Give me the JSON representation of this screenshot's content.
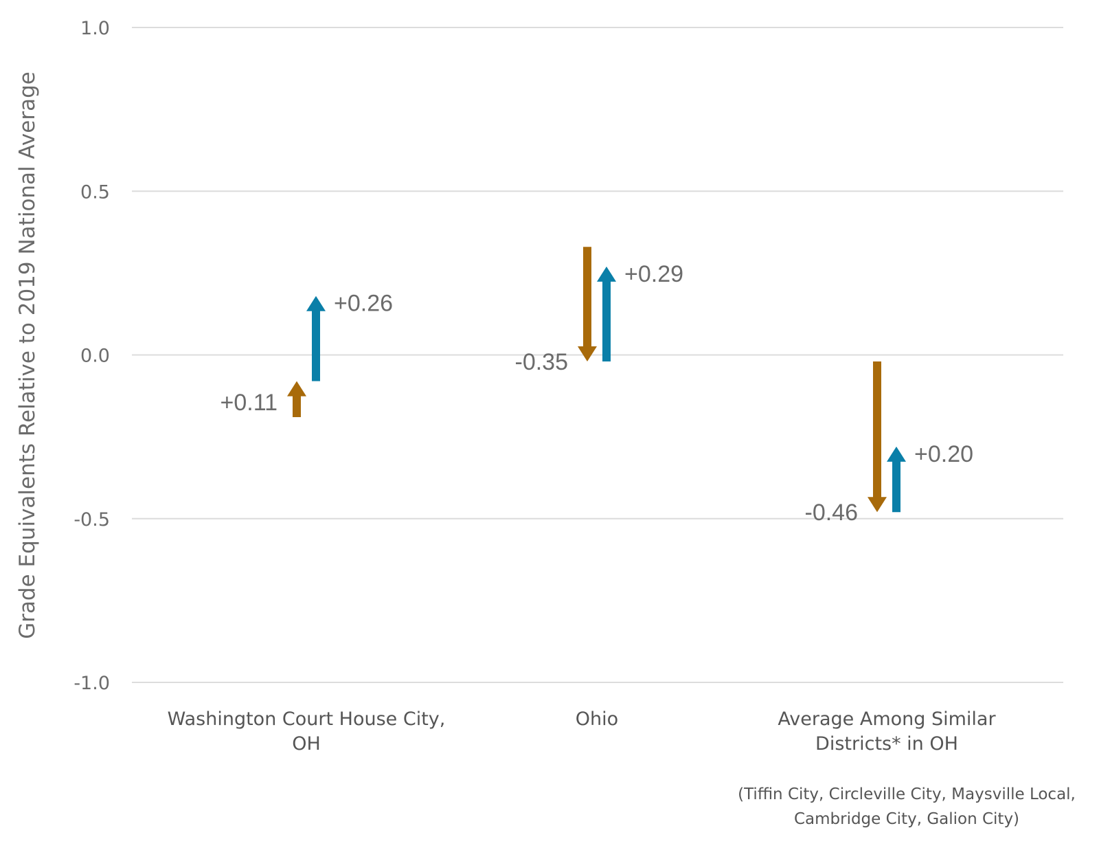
{
  "chart_data": {
    "type": "arrow",
    "ylabel": "Grade Equivalents Relative to 2019 National Average",
    "xlabel": "",
    "ylim": [
      -1.0,
      1.0
    ],
    "yticks": [
      "1.0",
      "0.5",
      "0.0",
      "-0.5",
      "-1.0"
    ],
    "ytick_values": [
      1.0,
      0.5,
      0.0,
      -0.5,
      -1.0
    ],
    "grid": true,
    "categories": [
      [
        "Washington Court House City,",
        "OH"
      ],
      [
        "Ohio"
      ],
      [
        "Average Among Similar",
        "Districts* in OH"
      ]
    ],
    "series": [
      {
        "color": "#a86a0a",
        "arrows": [
          {
            "from": -0.19,
            "to": -0.08,
            "label": "+0.11"
          },
          {
            "from": 0.33,
            "to": -0.02,
            "label": "-0.35"
          },
          {
            "from": -0.02,
            "to": -0.48,
            "label": "-0.46"
          }
        ]
      },
      {
        "color": "#0a7fa8",
        "arrows": [
          {
            "from": -0.08,
            "to": 0.18,
            "label": "+0.26"
          },
          {
            "from": -0.02,
            "to": 0.27,
            "label": "+0.29"
          },
          {
            "from": -0.48,
            "to": -0.28,
            "label": "+0.20"
          }
        ]
      }
    ]
  },
  "footnote": {
    "line1": "(Tiffin City, Circleville City, Maysville Local,",
    "line2": "Cambridge City, Galion City)"
  }
}
